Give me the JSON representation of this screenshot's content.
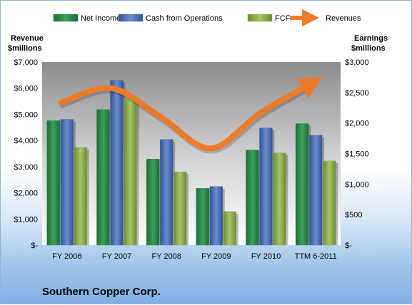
{
  "chart_data": {
    "type": "bar",
    "title": "Southern Copper Corp.",
    "categories": [
      "FY 2006",
      "FY 2007",
      "FY 2008",
      "FY 2009",
      "FY 2010",
      "TTM 6-2011"
    ],
    "left_axis": {
      "title_line1": "Revenue",
      "title_line2": "$millions",
      "ticks": [
        0,
        1000,
        2000,
        3000,
        4000,
        5000,
        6000,
        7000
      ],
      "tick_labels": [
        "$-",
        "$1,000",
        "$2,000",
        "$3,000",
        "$4,000",
        "$5,000",
        "$6,000",
        "$7,000"
      ],
      "ylim": [
        0,
        7000
      ]
    },
    "right_axis": {
      "title_line1": "Earnings",
      "title_line2": "$millions",
      "ticks": [
        0,
        500,
        1000,
        1500,
        2000,
        2500,
        3000
      ],
      "tick_labels": [
        "$-",
        "$500",
        "$1,000",
        "$1,500",
        "$2,000",
        "$2,500",
        "$3,000"
      ],
      "ylim": [
        0,
        3000
      ]
    },
    "bar_series": [
      {
        "name": "Net Income",
        "color": "#2e8b4a",
        "axis": "right",
        "values": [
          2040,
          2220,
          1410,
          930,
          1560,
          1990
        ]
      },
      {
        "name": "Cash from Operations",
        "color": "#4f72b8",
        "axis": "right",
        "values": [
          2060,
          2700,
          1730,
          960,
          1920,
          1800
        ]
      },
      {
        "name": "FCF",
        "color": "#8fad4e",
        "axis": "right",
        "values": [
          1600,
          2390,
          1200,
          550,
          1510,
          1380
        ]
      }
    ],
    "line_series": [
      {
        "name": "Revenues",
        "color": "#ec7c2c",
        "axis": "left",
        "values": [
          5450,
          6000,
          4900,
          3700,
          5050,
          6150
        ]
      }
    ],
    "legend_placement": "top",
    "grid": false
  }
}
